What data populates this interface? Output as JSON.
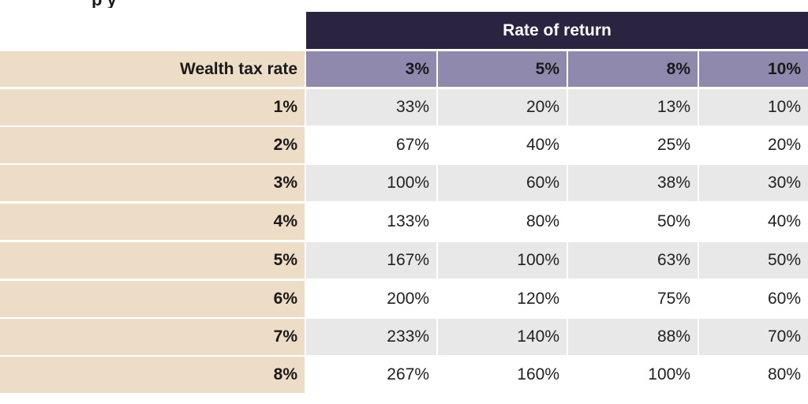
{
  "title": "p                              y",
  "chart_data": {
    "type": "table",
    "column_group_label": "Rate of return",
    "row_header_label": "Wealth tax rate",
    "columns": [
      "3%",
      "5%",
      "8%",
      "10%"
    ],
    "rows": [
      {
        "label": "1%",
        "values": [
          "33%",
          "20%",
          "13%",
          "10%"
        ]
      },
      {
        "label": "2%",
        "values": [
          "67%",
          "40%",
          "25%",
          "20%"
        ]
      },
      {
        "label": "3%",
        "values": [
          "100%",
          "60%",
          "38%",
          "30%"
        ]
      },
      {
        "label": "4%",
        "values": [
          "133%",
          "80%",
          "50%",
          "40%"
        ]
      },
      {
        "label": "5%",
        "values": [
          "167%",
          "100%",
          "63%",
          "50%"
        ]
      },
      {
        "label": "6%",
        "values": [
          "200%",
          "120%",
          "75%",
          "60%"
        ]
      },
      {
        "label": "7%",
        "values": [
          "233%",
          "140%",
          "88%",
          "70%"
        ]
      },
      {
        "label": "8%",
        "values": [
          "267%",
          "160%",
          "100%",
          "80%"
        ]
      }
    ]
  },
  "colors": {
    "header_dark": "#2a2440",
    "header_purple": "#9089ae",
    "row_header_beige": "#eddcc6",
    "row_shade_gray": "#e8e8e8",
    "row_plain": "#ffffff"
  }
}
